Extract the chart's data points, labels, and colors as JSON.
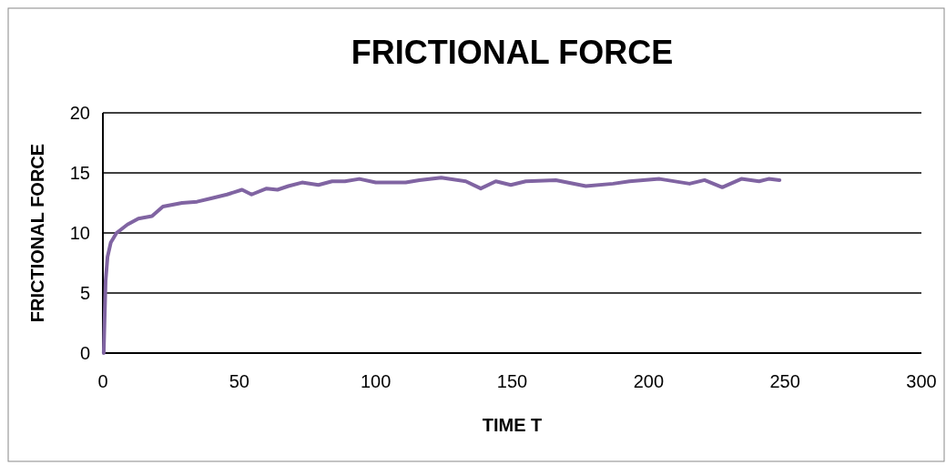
{
  "chart_data": {
    "type": "line",
    "title": "FRICTIONAL FORCE",
    "xlabel": "TIME T",
    "ylabel": "FRICTIONAL FORCE",
    "xlim": [
      0,
      300
    ],
    "xticks": [
      0,
      50,
      100,
      150,
      200,
      250,
      300
    ],
    "ylim": [
      0,
      20
    ],
    "yticks": [
      0,
      5,
      10,
      15,
      20
    ],
    "grid": "y",
    "series": [
      {
        "color": "#8064a2",
        "x": [
          0.3,
          1,
          1.7,
          2.9,
          5,
          9,
          13,
          18,
          22,
          29,
          34.5,
          40,
          45.5,
          51,
          54.5,
          60,
          64,
          68,
          73,
          79,
          84,
          88.7,
          94,
          100,
          111,
          116,
          124,
          133,
          138.5,
          144,
          149.5,
          155,
          166,
          177,
          187,
          193,
          204,
          215,
          220.5,
          227,
          234,
          240.5,
          244,
          248
        ],
        "values": [
          0,
          6,
          8,
          9.2,
          10,
          10.7,
          11.2,
          11.4,
          12.2,
          12.5,
          12.6,
          12.9,
          13.2,
          13.6,
          13.2,
          13.7,
          13.6,
          13.9,
          14.2,
          14,
          14.3,
          14.3,
          14.5,
          14.2,
          14.2,
          14.4,
          14.6,
          14.3,
          13.7,
          14.3,
          14,
          14.3,
          14.4,
          13.9,
          14.1,
          14.3,
          14.5,
          14.1,
          14.4,
          13.8,
          14.5,
          14.3,
          14.5,
          14.4
        ]
      }
    ]
  }
}
